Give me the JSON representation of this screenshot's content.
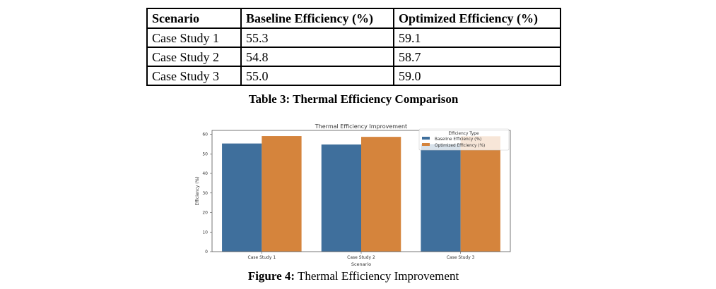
{
  "table": {
    "headers": [
      "Scenario",
      "Baseline Efficiency (%)",
      "Optimized Efficiency (%)"
    ],
    "rows": [
      [
        "Case Study 1",
        "55.3",
        "59.1"
      ],
      [
        "Case Study 2",
        "54.8",
        "58.7"
      ],
      [
        "Case Study 3",
        "55.0",
        "59.0"
      ]
    ],
    "caption": "Table 3: Thermal Efficiency Comparison"
  },
  "figure": {
    "caption_label": "Figure 4:",
    "caption_text": " Thermal Efficiency Improvement"
  },
  "chart_data": {
    "type": "bar",
    "title": "Thermal Efficiency Improvement",
    "xlabel": "Scenario",
    "ylabel": "Efficiency (%)",
    "categories": [
      "Case Study 1",
      "Case Study 2",
      "Case Study 3"
    ],
    "series": [
      {
        "name": "Baseline Efficiency (%)",
        "values": [
          55.3,
          54.8,
          55.0
        ],
        "color": "#3f6f9c"
      },
      {
        "name": "Optimized Efficiency (%)",
        "values": [
          59.1,
          58.7,
          59.0
        ],
        "color": "#d5843c"
      }
    ],
    "ylim": [
      0,
      62
    ],
    "yticks": [
      0,
      10,
      20,
      30,
      40,
      50,
      60
    ],
    "legend_title": "Efficiency Type",
    "legend_position": "top-right",
    "grid": false
  }
}
